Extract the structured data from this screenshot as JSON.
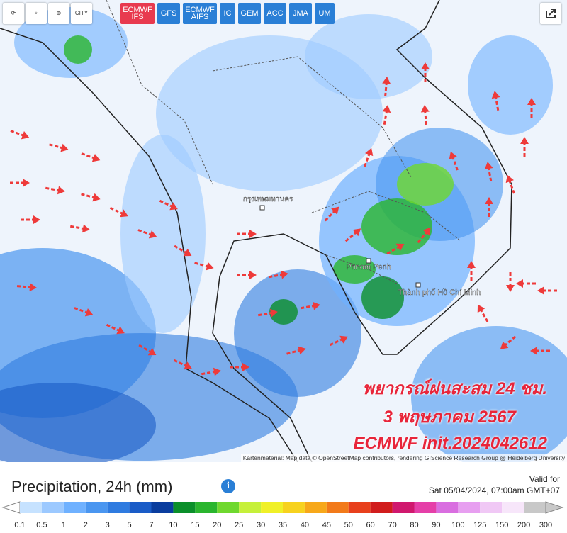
{
  "toolbar": {
    "tools": [
      "CITY"
    ],
    "models": [
      "ECMWF IFS",
      "GFS",
      "ECMWF AIFS",
      "IC",
      "GEM",
      "ACC",
      "JMA",
      "UM"
    ],
    "active_model": "ECMWF IFS"
  },
  "map": {
    "places": [
      "Phnom Penh",
      "Thành phố Hồ Chí Minh",
      "กรุงเทพมหานคร"
    ],
    "overlay": [
      "พยากรณ์ฝนสะสม 24 ชม.",
      "3 พฤษภาคม 2567",
      "ECMWF init.2024042612"
    ],
    "attribution": "Kartenmaterial: Map data © OpenStreetMap contributors, rendering GIScience Research Group @ Heidelberg University"
  },
  "footer": {
    "title": "Precipitation, 24h (mm)",
    "valid_label": "Valid for",
    "valid_time": "Sat 05/04/2024, 07:00am GMT+07"
  },
  "legend": {
    "labels": [
      0.1,
      0.5,
      1,
      2,
      3,
      5,
      7,
      10,
      15,
      20,
      25,
      30,
      35,
      40,
      45,
      50,
      60,
      70,
      80,
      90,
      100,
      125,
      150,
      200,
      300
    ],
    "colors": [
      "#c6e2ff",
      "#9cc9ff",
      "#6fb1ff",
      "#4a96f0",
      "#2f7be0",
      "#1a5cc7",
      "#0a3d9e",
      "#0b8f2a",
      "#2ab52e",
      "#6fd82e",
      "#c6f03a",
      "#f0f028",
      "#f7d21f",
      "#f7a81a",
      "#f27a1a",
      "#e8401c",
      "#d11d1d",
      "#d0186e",
      "#e53fa8",
      "#d96ee0",
      "#e79ff0",
      "#f0c8f5",
      "#f7e6fa",
      "#c8c8c8"
    ]
  }
}
